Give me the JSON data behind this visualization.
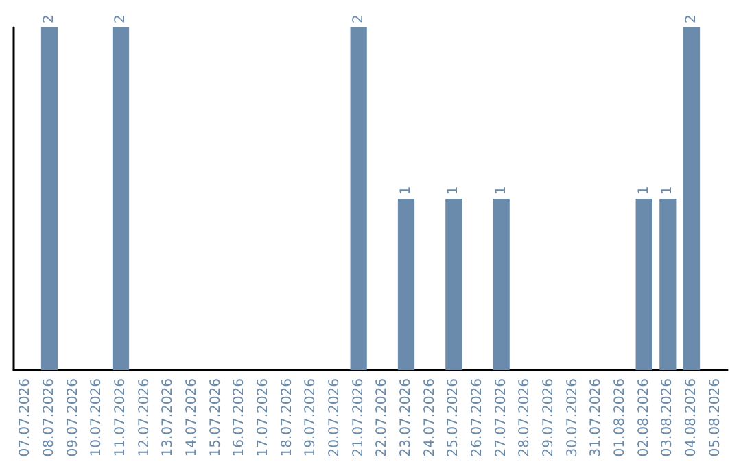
{
  "chart_data": {
    "type": "bar",
    "categories": [
      "07.07.2026",
      "08.07.2026",
      "09.07.2026",
      "10.07.2026",
      "11.07.2026",
      "12.07.2026",
      "13.07.2026",
      "14.07.2026",
      "15.07.2026",
      "16.07.2026",
      "17.07.2026",
      "18.07.2026",
      "19.07.2026",
      "20.07.2026",
      "21.07.2026",
      "22.07.2026",
      "23.07.2026",
      "24.07.2026",
      "25.07.2026",
      "26.07.2026",
      "27.07.2026",
      "28.07.2026",
      "29.07.2026",
      "30.07.2026",
      "31.07.2026",
      "01.08.2026",
      "02.08.2026",
      "03.08.2026",
      "04.08.2026",
      "05.08.2026"
    ],
    "values": [
      0,
      2,
      0,
      0,
      2,
      0,
      0,
      0,
      0,
      0,
      0,
      0,
      0,
      0,
      2,
      0,
      1,
      0,
      1,
      0,
      1,
      0,
      0,
      0,
      0,
      0,
      1,
      1,
      2,
      0
    ],
    "value_labels": [
      null,
      "2",
      null,
      null,
      "2",
      null,
      null,
      null,
      null,
      null,
      null,
      null,
      null,
      null,
      "2",
      null,
      "1",
      null,
      "1",
      null,
      "1",
      null,
      null,
      null,
      null,
      null,
      "1",
      "1",
      "2",
      null
    ],
    "color": "#6a8bab",
    "ylim": [
      0,
      2
    ],
    "tick_labels": "x",
    "grid": false
  }
}
